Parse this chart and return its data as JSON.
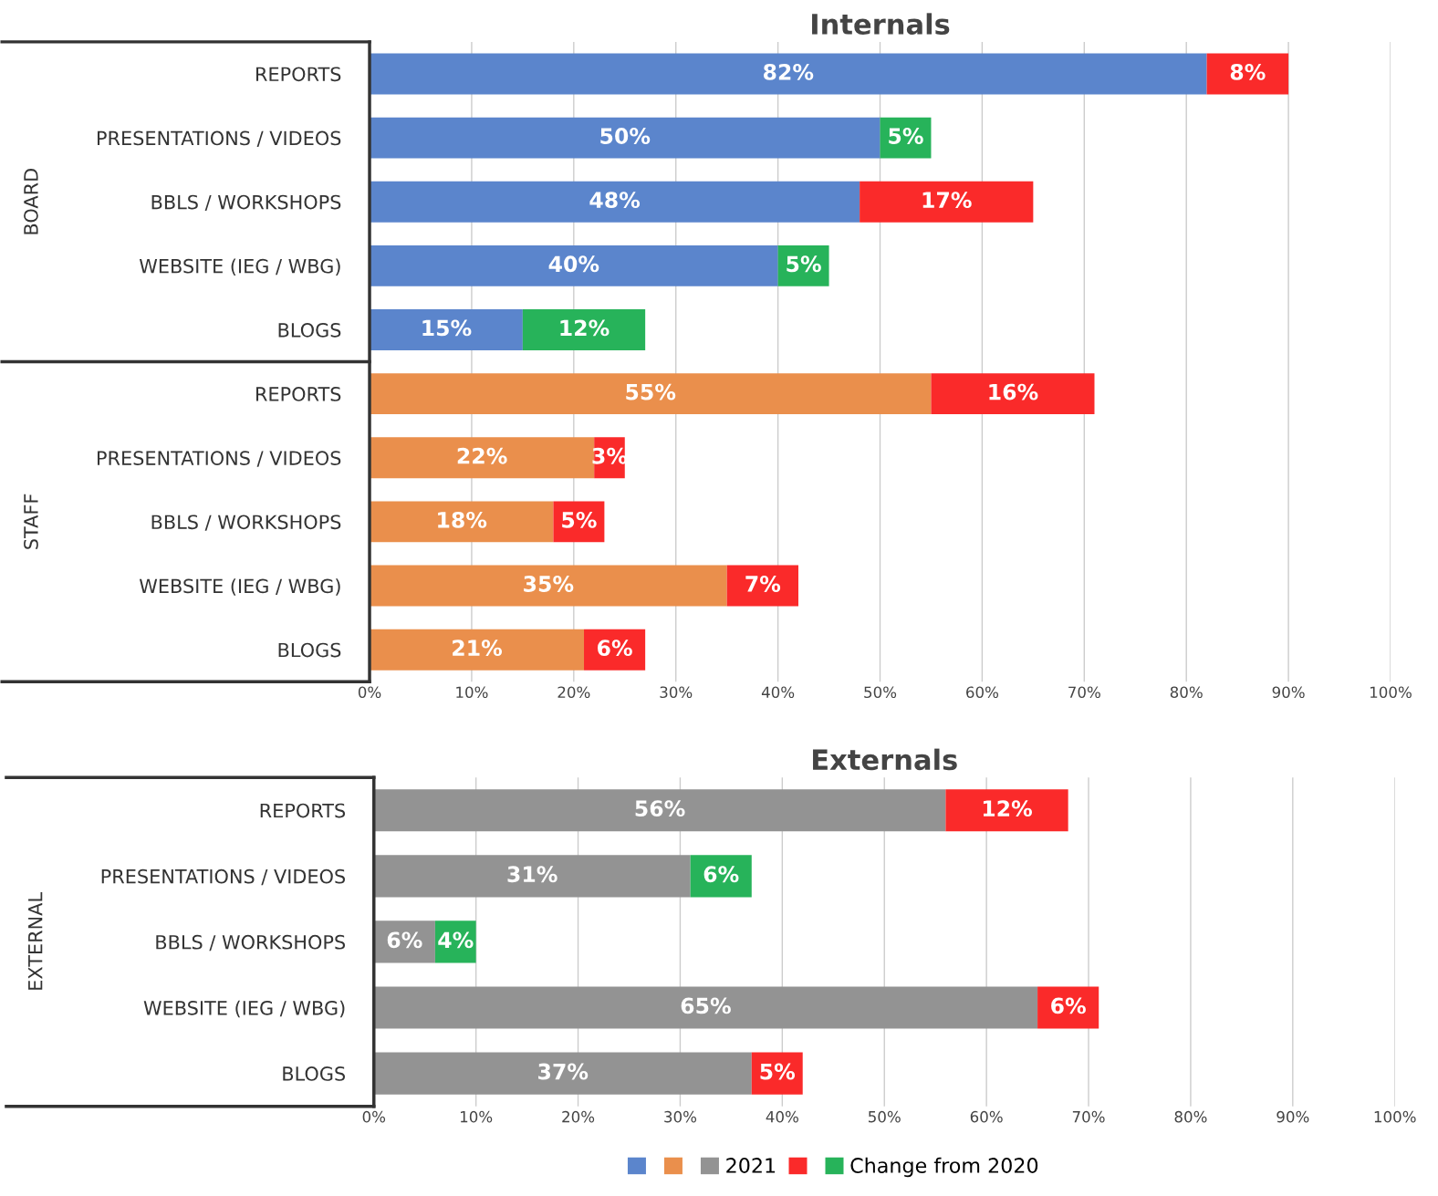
{
  "chart_data": [
    {
      "type": "bar",
      "orientation": "horizontal",
      "stacked": true,
      "title": "Internals",
      "categories": [
        "REPORTS",
        "PRESENTATIONS / VIDEOS",
        "BBLS / WORKSHOPS",
        "WEBSITE (IEG / WBG)",
        "BLOGS",
        "REPORTS",
        "PRESENTATIONS / VIDEOS",
        "BBLS / WORKSHOPS",
        "WEBSITE (IEG / WBG)",
        "BLOGS"
      ],
      "annotations": [
        "BOARD",
        "STAFF"
      ],
      "series": [
        {
          "values": [
            82,
            50,
            48,
            40,
            15,
            55,
            22,
            18,
            35,
            21
          ],
          "colors": [
            "#5b85cc",
            "#5b85cc",
            "#5b85cc",
            "#5b85cc",
            "#5b85cc",
            "#ea8f4c",
            "#ea8f4c",
            "#ea8f4c",
            "#ea8f4c",
            "#ea8f4c"
          ],
          "value_labels": [
            "82%",
            "50%",
            "48%",
            "40%",
            "15%",
            "55%",
            "22%",
            "18%",
            "35%",
            "21%"
          ]
        },
        {
          "values": [
            8,
            5,
            17,
            5,
            12,
            16,
            3,
            5,
            7,
            6
          ],
          "colors": [
            "#fa2a2a",
            "#27b35a",
            "#fa2a2a",
            "#27b35a",
            "#27b35a",
            "#fa2a2a",
            "#fa2a2a",
            "#fa2a2a",
            "#fa2a2a",
            "#fa2a2a"
          ],
          "value_labels": [
            "8%",
            "5%",
            "17%",
            "5%",
            "12%",
            "16%",
            "3%",
            "5%",
            "7%",
            "6%"
          ]
        }
      ],
      "xlim": [
        0,
        100
      ],
      "xticks": [
        {
          "value": 0,
          "label": "0%"
        },
        {
          "value": 10,
          "label": "10%"
        },
        {
          "value": 20,
          "label": "20%"
        },
        {
          "value": 30,
          "label": "30%"
        },
        {
          "value": 40,
          "label": "40%"
        },
        {
          "value": 50,
          "label": "50%"
        },
        {
          "value": 60,
          "label": "60%"
        },
        {
          "value": 70,
          "label": "70%"
        },
        {
          "value": 80,
          "label": "80%"
        },
        {
          "value": 90,
          "label": "90%"
        },
        {
          "value": 100,
          "label": "100%"
        }
      ],
      "grid": "x"
    },
    {
      "type": "bar",
      "orientation": "horizontal",
      "stacked": true,
      "title": "Externals",
      "categories": [
        "REPORTS",
        "PRESENTATIONS / VIDEOS",
        "BBLS / WORKSHOPS",
        "WEBSITE (IEG / WBG)",
        "BLOGS"
      ],
      "annotations": [
        "EXTERNAL"
      ],
      "series": [
        {
          "name": "2021",
          "values": [
            56,
            31,
            6,
            65,
            37
          ],
          "colors": [
            "#939393",
            "#939393",
            "#939393",
            "#939393",
            "#939393"
          ],
          "value_labels": [
            "56%",
            "31%",
            "6%",
            "65%",
            "37%"
          ]
        },
        {
          "name": "Change from 2020",
          "values": [
            12,
            6,
            4,
            6,
            5
          ],
          "colors": [
            "#fa2a2a",
            "#27b35a",
            "#27b35a",
            "#fa2a2a",
            "#fa2a2a"
          ],
          "value_labels": [
            "12%",
            "6%",
            "4%",
            "6%",
            "5%"
          ]
        }
      ],
      "xlim": [
        0,
        100
      ],
      "xticks": [
        {
          "value": 0,
          "label": "0%"
        },
        {
          "value": 10,
          "label": "10%"
        },
        {
          "value": 20,
          "label": "20%"
        },
        {
          "value": 30,
          "label": "30%"
        },
        {
          "value": 40,
          "label": "40%"
        },
        {
          "value": 50,
          "label": "50%"
        },
        {
          "value": 60,
          "label": "60%"
        },
        {
          "value": 70,
          "label": "70%"
        },
        {
          "value": 80,
          "label": "80%"
        },
        {
          "value": 90,
          "label": "90%"
        },
        {
          "value": 100,
          "label": "100%"
        }
      ],
      "grid": "x",
      "legend": "bottom"
    }
  ]
}
